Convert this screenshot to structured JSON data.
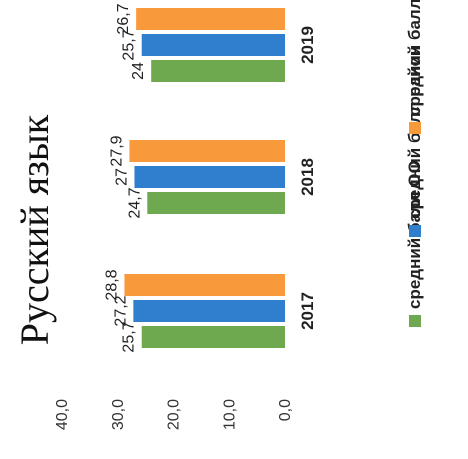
{
  "chart_data": {
    "type": "bar",
    "title": "Русский язык",
    "categories": [
      "2017",
      "2018",
      "2019"
    ],
    "series": [
      {
        "name": "средний балл ОО",
        "values": [
          25.7,
          24.7,
          24
        ],
        "labels": [
          "25,7",
          "24,7",
          "24"
        ],
        "color": "#6ea94f"
      },
      {
        "name": "средний балл район",
        "values": [
          27.2,
          27,
          25.7
        ],
        "labels": [
          "27,2",
          "27",
          "25,7"
        ],
        "color": "#2f7fce"
      },
      {
        "name": "средний балл край",
        "values": [
          28.8,
          27.9,
          26.7
        ],
        "labels": [
          "28,8",
          "27,9",
          "26,7"
        ],
        "color": "#f89a3b"
      }
    ],
    "y_ticks": [
      {
        "value": 0,
        "label": "0,0"
      },
      {
        "value": 10,
        "label": "10,0"
      },
      {
        "value": 20,
        "label": "20,0"
      },
      {
        "value": 30,
        "label": "30,0"
      },
      {
        "value": 40,
        "label": "40,0"
      }
    ],
    "ylim": [
      0,
      40
    ],
    "grid": false,
    "legend_position": "bottom"
  }
}
